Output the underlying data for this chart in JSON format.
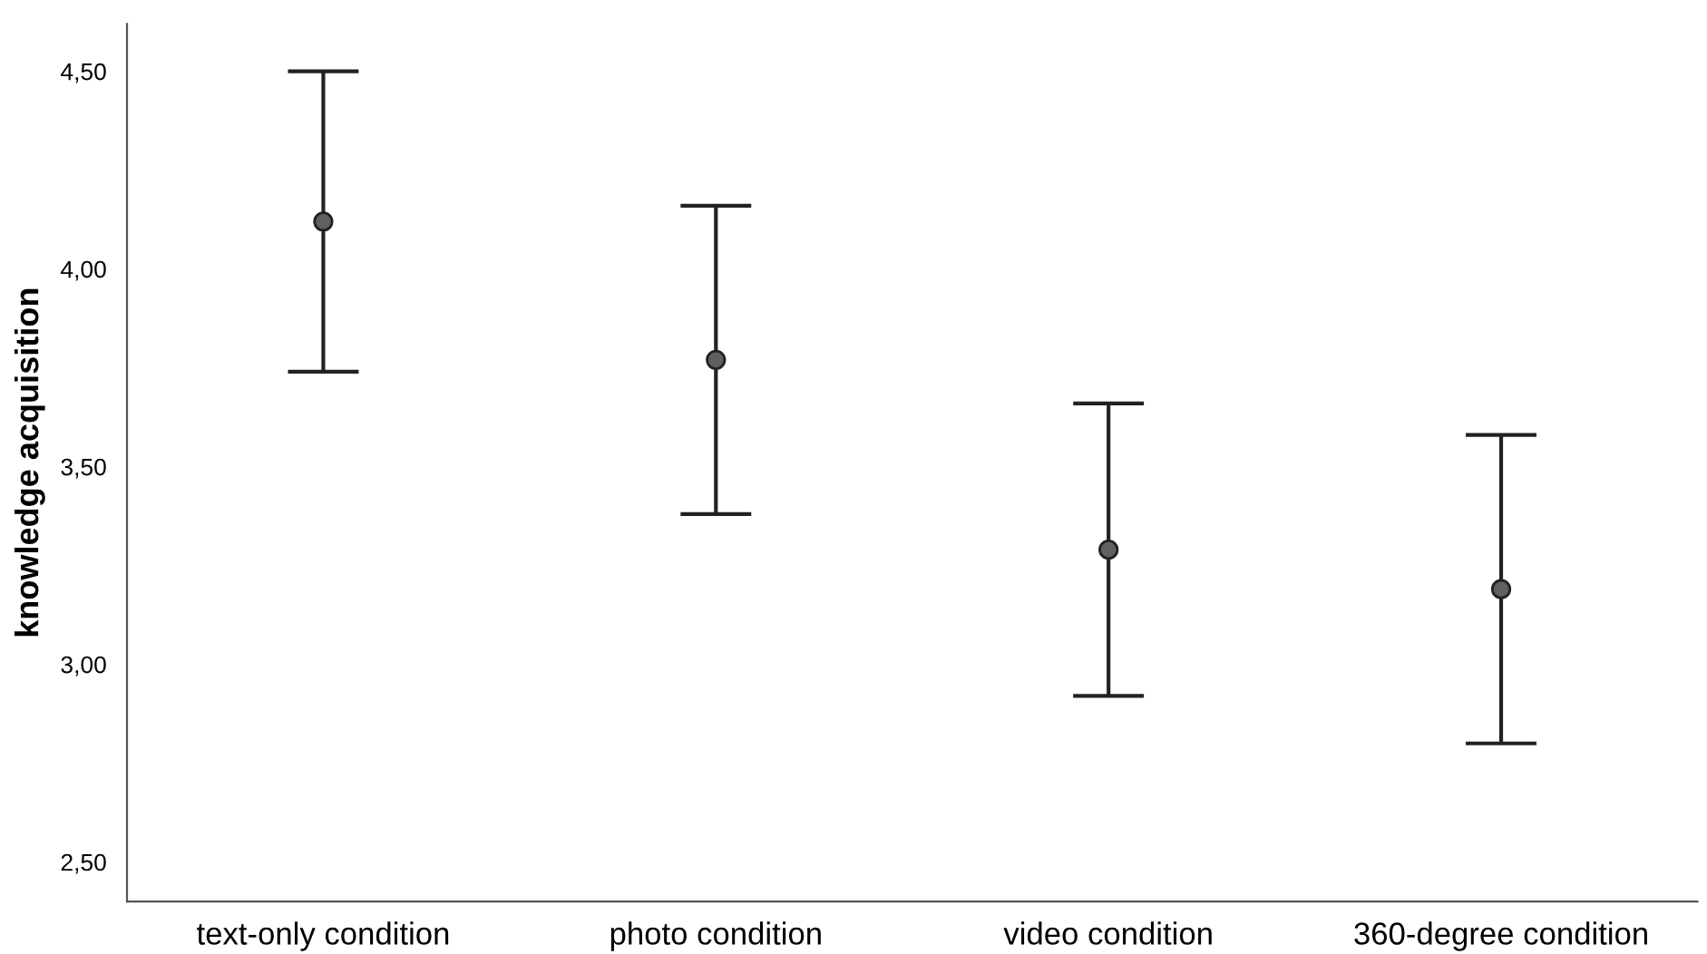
{
  "chart_data": {
    "type": "scatter",
    "ylabel": "knowledge acquisition",
    "categories": [
      "text-only condition",
      "photo condition",
      "video condition",
      "360-degree condition"
    ],
    "values": [
      4.12,
      3.77,
      3.29,
      3.19
    ],
    "errors": [
      [
        3.74,
        4.5
      ],
      [
        3.38,
        4.16
      ],
      [
        2.92,
        3.66
      ],
      [
        2.8,
        3.58
      ]
    ],
    "color": "#606060",
    "marker": "circle",
    "grid": false,
    "ylim": [
      2.4,
      4.62
    ],
    "yticks": [
      {
        "value": 2.5,
        "label": "2,50"
      },
      {
        "value": 3.0,
        "label": "3,00"
      },
      {
        "value": 3.5,
        "label": "3,50"
      },
      {
        "value": 4.0,
        "label": "4,00"
      },
      {
        "value": 4.5,
        "label": "4,50"
      }
    ]
  }
}
